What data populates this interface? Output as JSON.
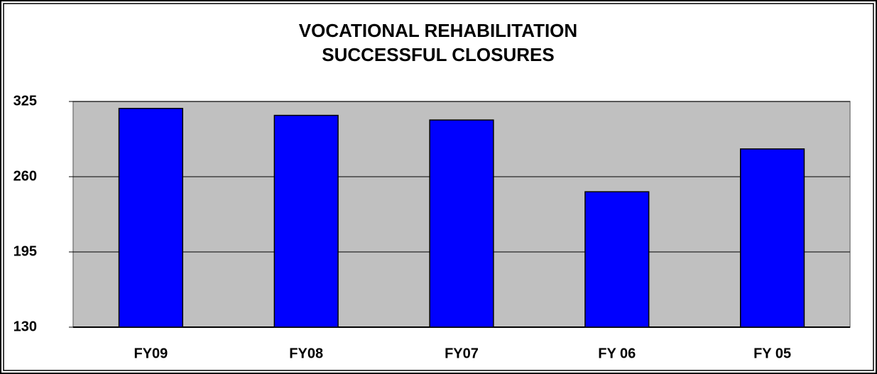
{
  "chart_data": {
    "type": "bar",
    "title": [
      "VOCATIONAL REHABILITATION",
      "SUCCESSFUL CLOSURES"
    ],
    "categories": [
      "FY09",
      "FY08",
      "FY07",
      "FY 06",
      "FY 05"
    ],
    "values": [
      319,
      313,
      309,
      247,
      284
    ],
    "color": "#0000ff",
    "ylim": [
      130,
      325
    ],
    "yticks": [
      130,
      195,
      260,
      325
    ],
    "grid": true
  }
}
